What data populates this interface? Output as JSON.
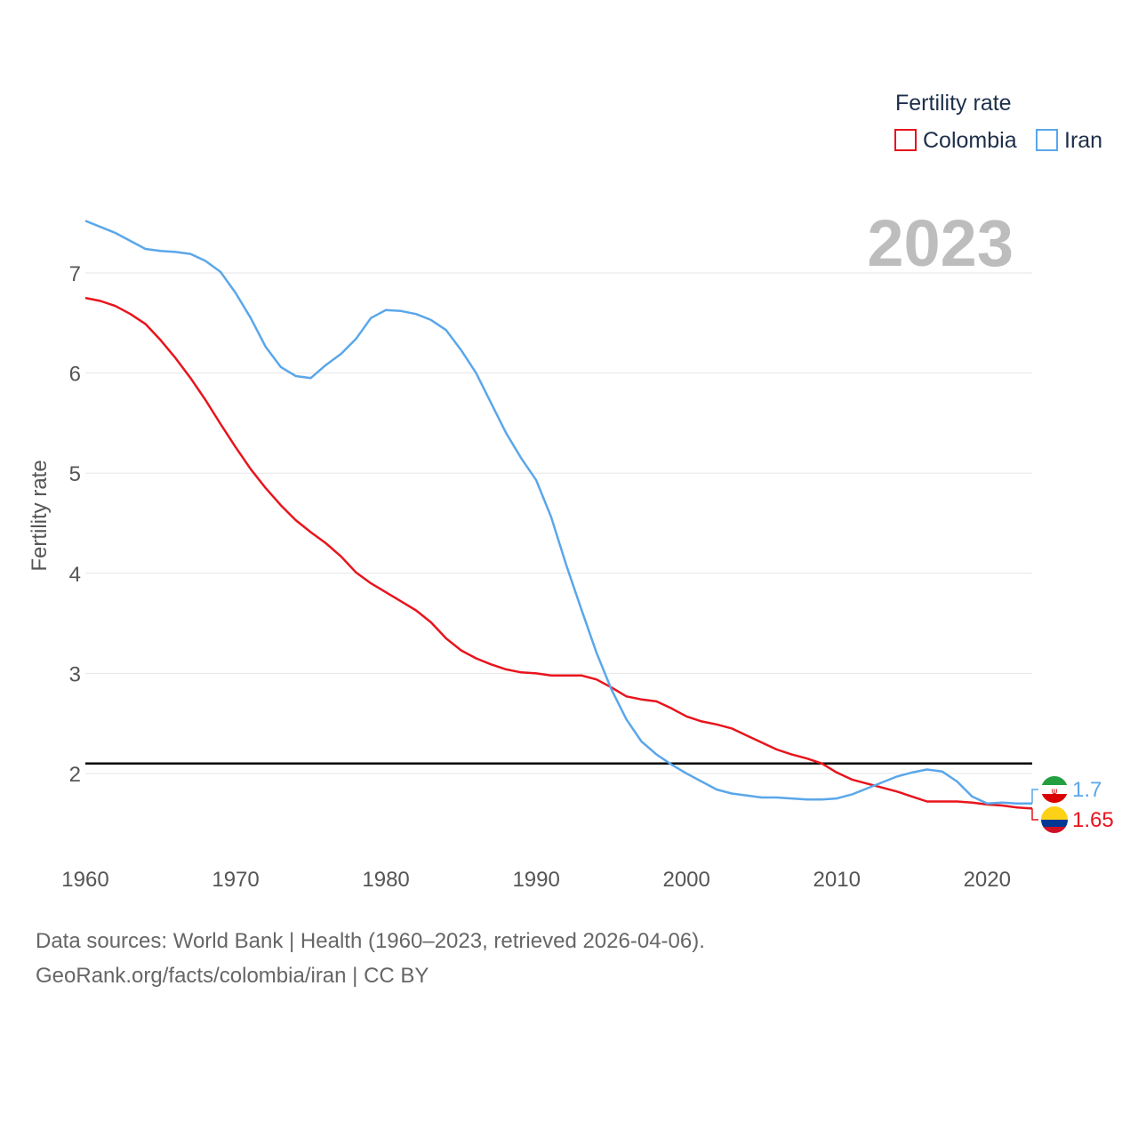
{
  "chart_data": {
    "type": "line",
    "title": "",
    "legend_title": "Fertility rate",
    "ylabel": "Fertility rate",
    "xlabel": "",
    "year_label": "2023",
    "xlim": [
      1960,
      2023
    ],
    "ylim": [
      1.4,
      7.8
    ],
    "x_ticks": [
      1960,
      1970,
      1980,
      1990,
      2000,
      2010,
      2020
    ],
    "y_ticks": [
      2,
      3,
      4,
      5,
      6,
      7
    ],
    "reference_line": 2.1,
    "x": [
      1960,
      1961,
      1962,
      1963,
      1964,
      1965,
      1966,
      1967,
      1968,
      1969,
      1970,
      1971,
      1972,
      1973,
      1974,
      1975,
      1976,
      1977,
      1978,
      1979,
      1980,
      1981,
      1982,
      1983,
      1984,
      1985,
      1986,
      1987,
      1988,
      1989,
      1990,
      1991,
      1992,
      1993,
      1994,
      1995,
      1996,
      1997,
      1998,
      1999,
      2000,
      2001,
      2002,
      2003,
      2004,
      2005,
      2006,
      2007,
      2008,
      2009,
      2010,
      2011,
      2012,
      2013,
      2014,
      2015,
      2016,
      2017,
      2018,
      2019,
      2020,
      2021,
      2022,
      2023
    ],
    "series": [
      {
        "name": "Colombia",
        "color": "#e8141c",
        "end_label": "1.65",
        "values": [
          6.75,
          6.72,
          6.67,
          6.59,
          6.49,
          6.33,
          6.15,
          5.95,
          5.73,
          5.49,
          5.26,
          5.04,
          4.85,
          4.68,
          4.53,
          4.41,
          4.3,
          4.17,
          4.01,
          3.9,
          3.81,
          3.72,
          3.63,
          3.51,
          3.35,
          3.23,
          3.15,
          3.09,
          3.04,
          3.01,
          3.0,
          2.98,
          2.98,
          2.98,
          2.94,
          2.86,
          2.77,
          2.74,
          2.72,
          2.65,
          2.57,
          2.52,
          2.49,
          2.45,
          2.38,
          2.31,
          2.24,
          2.19,
          2.15,
          2.1,
          2.01,
          1.94,
          1.9,
          1.86,
          1.82,
          1.77,
          1.72,
          1.72,
          1.72,
          1.71,
          1.69,
          1.68,
          1.66,
          1.65
        ]
      },
      {
        "name": "Iran",
        "color": "#5aa7ea",
        "end_label": "1.7",
        "values": [
          7.52,
          7.46,
          7.4,
          7.32,
          7.24,
          7.22,
          7.21,
          7.19,
          7.12,
          7.01,
          6.8,
          6.55,
          6.26,
          6.06,
          5.97,
          5.95,
          6.08,
          6.19,
          6.34,
          6.55,
          6.63,
          6.62,
          6.59,
          6.53,
          6.43,
          6.23,
          6.0,
          5.7,
          5.4,
          5.15,
          4.93,
          4.56,
          4.08,
          3.64,
          3.21,
          2.84,
          2.54,
          2.32,
          2.19,
          2.09,
          2.0,
          1.92,
          1.84,
          1.8,
          1.78,
          1.76,
          1.76,
          1.75,
          1.74,
          1.74,
          1.75,
          1.79,
          1.85,
          1.91,
          1.97,
          2.01,
          2.04,
          2.02,
          1.92,
          1.77,
          1.7,
          1.71,
          1.7,
          1.7
        ]
      }
    ]
  },
  "source": {
    "line1": "Data sources: World Bank | Health (1960–2023, retrieved 2026-04-06).",
    "line2": "GeoRank.org/facts/colombia/iran | CC BY"
  }
}
